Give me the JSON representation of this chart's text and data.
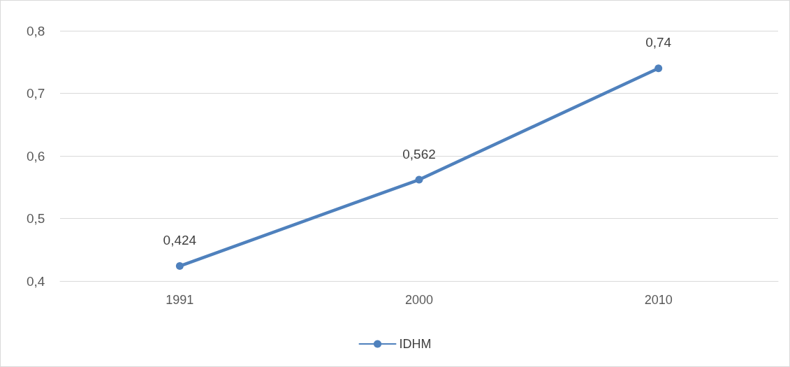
{
  "chart_data": {
    "type": "line",
    "categories": [
      "1991",
      "2000",
      "2010"
    ],
    "series": [
      {
        "name": "IDHM",
        "color": "#4f81bd",
        "values": [
          0.424,
          0.562,
          0.74
        ],
        "value_labels": [
          "0,424",
          "0,562",
          "0,74"
        ]
      }
    ],
    "ylim": [
      0.4,
      0.8
    ],
    "yticks": [
      {
        "value": 0.4,
        "label": "0,4"
      },
      {
        "value": 0.5,
        "label": "0,5"
      },
      {
        "value": 0.6,
        "label": "0,6"
      },
      {
        "value": 0.7,
        "label": "0,7"
      },
      {
        "value": 0.8,
        "label": "0,8"
      }
    ],
    "grid": "y",
    "legend": "bottom",
    "marker": "circle",
    "line_style": "solid"
  }
}
